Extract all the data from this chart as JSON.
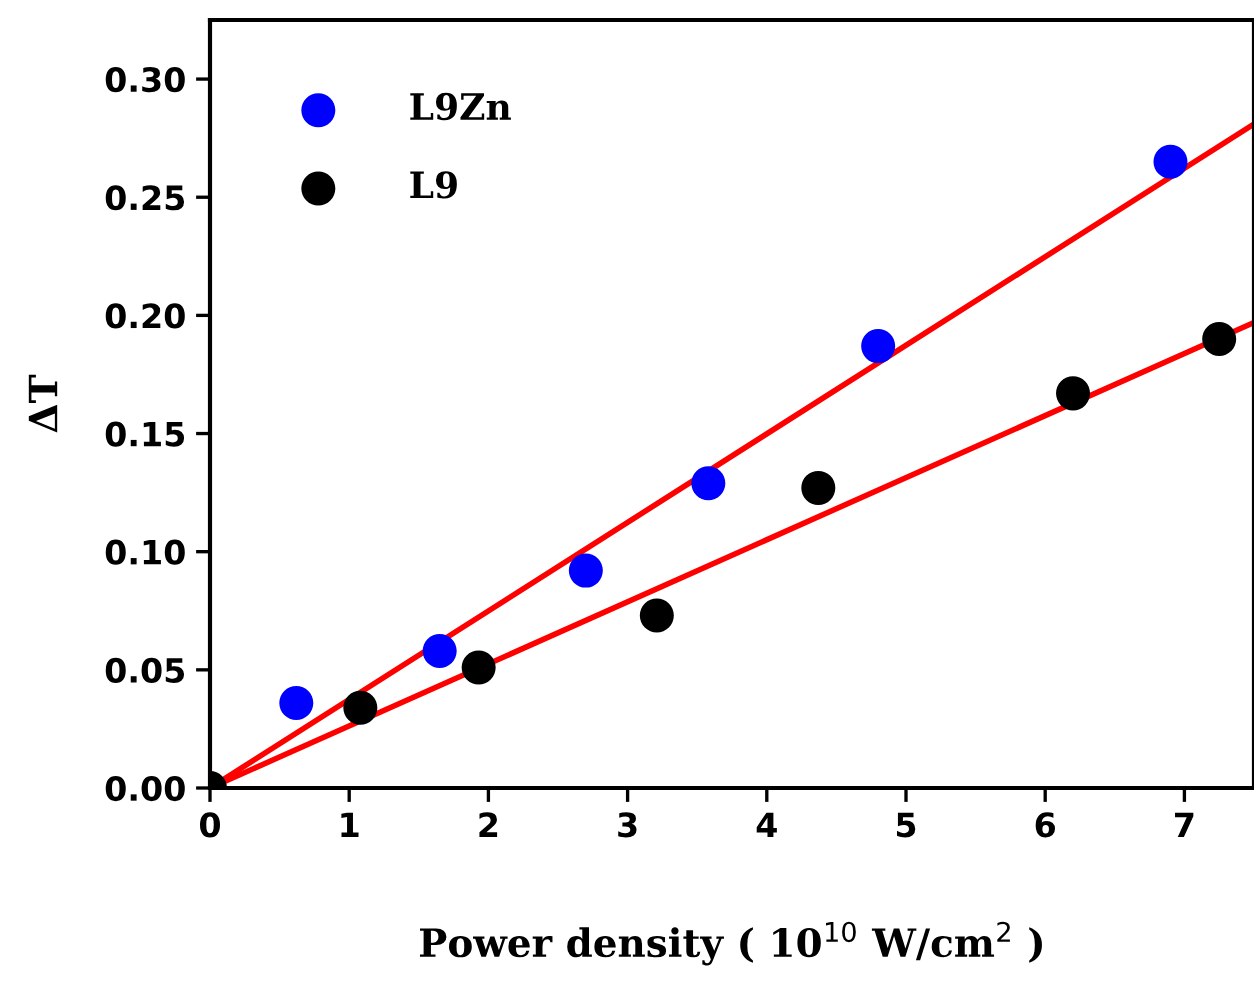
{
  "chart_data": {
    "type": "scatter",
    "xlabel": "Power density ( 10$^{10}$ W/cm$^{2}$ )",
    "ylabel": "ΔT",
    "series": [
      {
        "name": "L9Zn",
        "marker": "circle",
        "color": "#0000ff",
        "x": [
          0.62,
          1.65,
          2.7,
          3.58,
          4.8,
          6.9
        ],
        "values": [
          0.036,
          0.058,
          0.092,
          0.129,
          0.187,
          0.265
        ]
      },
      {
        "name": "L9",
        "marker": "circle",
        "color": "#000000",
        "x": [
          0,
          1.08,
          1.93,
          3.21,
          4.37,
          6.2,
          7.25
        ],
        "values": [
          0,
          0.034,
          0.051,
          0.073,
          0.127,
          0.167,
          0.19
        ]
      },
      {
        "type": "line",
        "marker": "none",
        "color": "#ff0000",
        "x": [
          0,
          7.5
        ],
        "values": [
          0,
          0.281
        ]
      },
      {
        "type": "line",
        "marker": "none",
        "color": "#ff0000",
        "x": [
          0,
          7.5
        ],
        "values": [
          0,
          0.197
        ]
      }
    ],
    "xlim": [
      0,
      7.5
    ],
    "ylim": [
      0,
      0.325
    ],
    "xticks": [
      0,
      1,
      2,
      3,
      4,
      5,
      6,
      7
    ],
    "yticks": [
      {
        "value": 0,
        "label": "0.00"
      },
      {
        "value": 0.05,
        "label": "0.05"
      },
      {
        "value": 0.1,
        "label": "0.10"
      },
      {
        "value": 0.15,
        "label": "0.15"
      },
      {
        "value": 0.2,
        "label": "0.20"
      },
      {
        "value": 0.25,
        "label": "0.25"
      },
      {
        "value": 0.3,
        "label": "0.30"
      }
    ],
    "legend": "top left",
    "grid": false
  }
}
